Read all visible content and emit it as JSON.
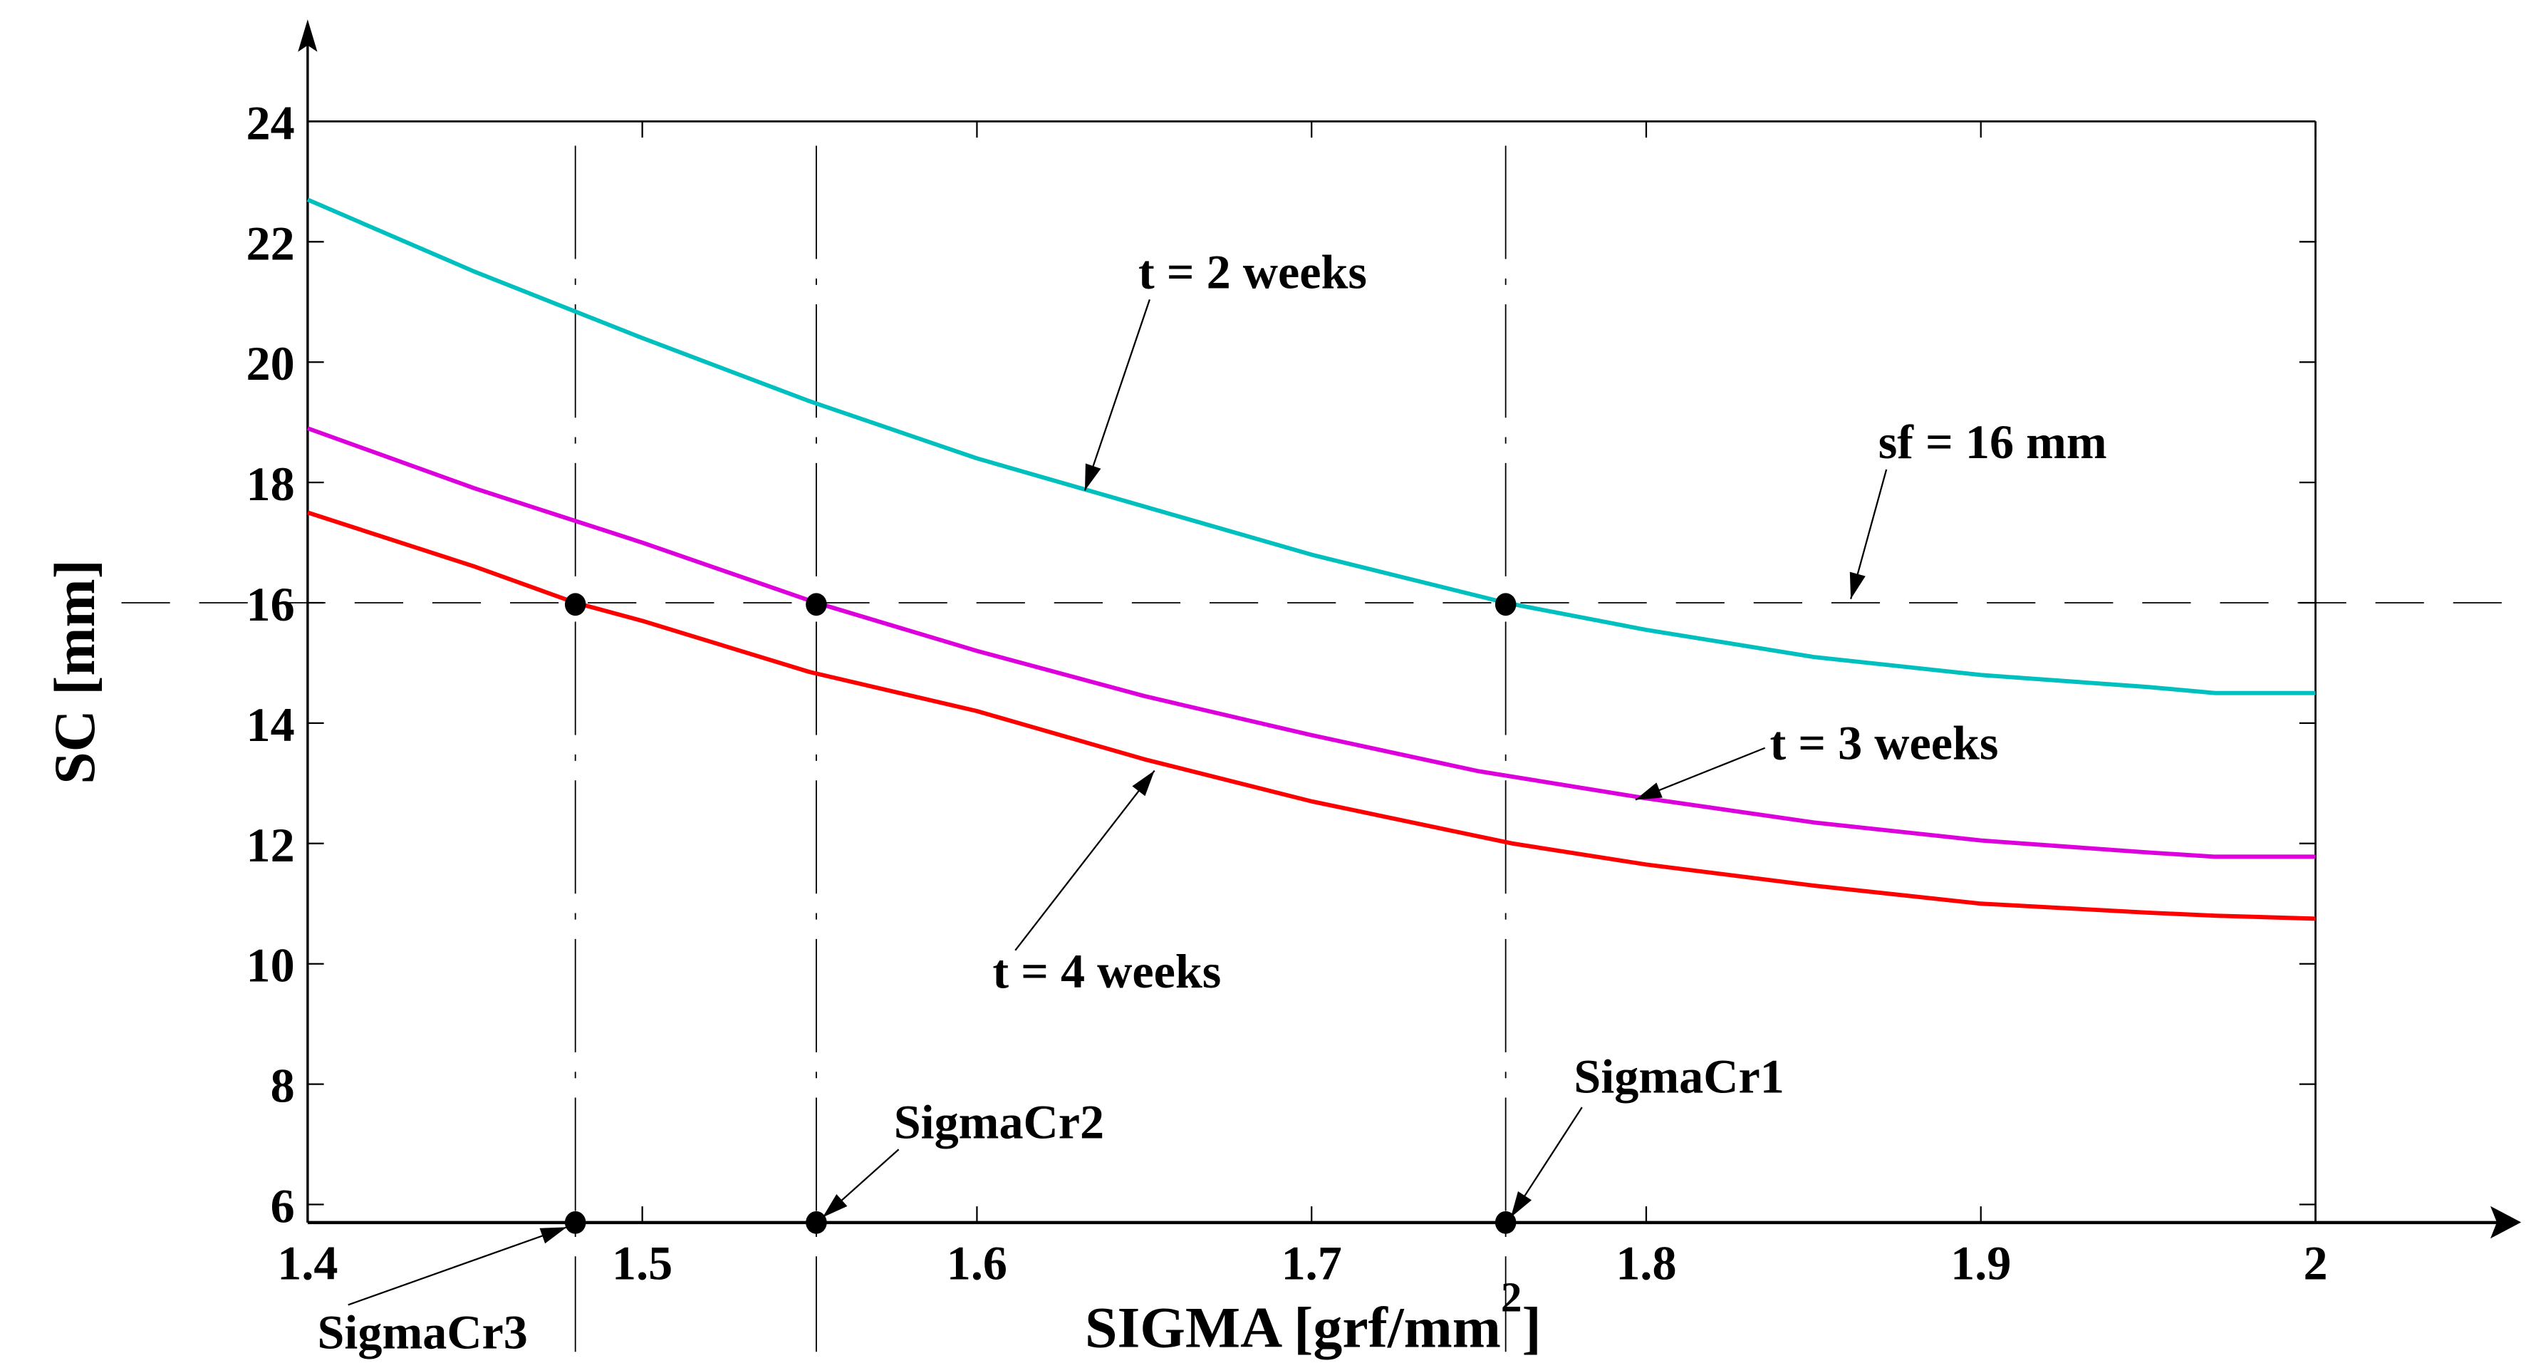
{
  "chart_data": {
    "type": "line",
    "title": "",
    "xlabel": "SIGMA [grf/mm",
    "xlabel_superscript": "2",
    "xlabel_close": "]",
    "ylabel": "SC [mm]",
    "xlim": [
      1.4,
      2.0
    ],
    "ylim": [
      5.7,
      24
    ],
    "grid": false,
    "x_ticks": [
      "1.4",
      "1.5",
      "1.6",
      "1.7",
      "1.8",
      "1.9",
      "2"
    ],
    "x_tick_values": [
      1.4,
      1.5,
      1.6,
      1.7,
      1.8,
      1.9,
      2.0
    ],
    "y_ticks": [
      "6",
      "8",
      "10",
      "12",
      "14",
      "16",
      "18",
      "20",
      "22",
      "24"
    ],
    "y_tick_values": [
      6,
      8,
      10,
      12,
      14,
      16,
      18,
      20,
      22,
      24
    ],
    "series": [
      {
        "name": "t = 2 weeks",
        "color": "#00bfbf",
        "x": [
          1.4,
          1.45,
          1.5,
          1.55,
          1.6,
          1.65,
          1.7,
          1.758,
          1.8,
          1.85,
          1.9,
          1.95,
          1.97,
          2.0
        ],
        "y": [
          22.7,
          21.5,
          20.4,
          19.35,
          18.4,
          17.6,
          16.8,
          16.0,
          15.55,
          15.1,
          14.8,
          14.6,
          14.5,
          14.5
        ]
      },
      {
        "name": "t = 3 weeks",
        "color": "#dd00dd",
        "x": [
          1.4,
          1.45,
          1.5,
          1.552,
          1.6,
          1.65,
          1.7,
          1.75,
          1.8,
          1.85,
          1.9,
          1.95,
          1.97,
          2.0
        ],
        "y": [
          18.9,
          17.9,
          17.0,
          16.0,
          15.2,
          14.45,
          13.8,
          13.2,
          12.75,
          12.35,
          12.05,
          11.85,
          11.78,
          11.78
        ]
      },
      {
        "name": "t = 4 weeks",
        "color": "#ff0000",
        "x": [
          1.4,
          1.45,
          1.48,
          1.5,
          1.55,
          1.6,
          1.65,
          1.7,
          1.76,
          1.8,
          1.85,
          1.9,
          1.95,
          1.97,
          2.0
        ],
        "y": [
          17.5,
          16.6,
          16.0,
          15.7,
          14.85,
          14.2,
          13.4,
          12.7,
          12.0,
          11.65,
          11.3,
          11.0,
          10.85,
          10.8,
          10.75
        ]
      }
    ],
    "reference_line": {
      "label": "sf = 16 mm",
      "y": 16
    },
    "critical_points": [
      {
        "label": "SigmaCr1",
        "x": 1.758
      },
      {
        "label": "SigmaCr2",
        "x": 1.552
      },
      {
        "label": "SigmaCr3",
        "x": 1.48
      }
    ],
    "annotations": [
      "t = 2 weeks",
      "t = 3 weeks",
      "t = 4 weeks",
      "sf = 16 mm"
    ]
  }
}
